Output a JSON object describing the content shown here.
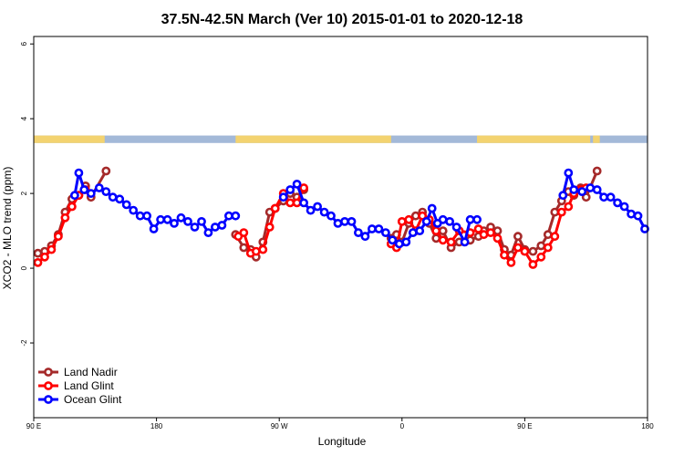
{
  "chart_data": {
    "type": "line",
    "title": "37.5N-42.5N March (Ver 10)   2015-01-01 to 2020-12-18",
    "xlabel": "Longitude",
    "ylabel": "XCO2 - MLO trend (ppm)",
    "xlim": [
      0,
      450
    ],
    "ylim": [
      -4.0,
      6.2
    ],
    "x_ticks": [
      {
        "value": 0,
        "label": "90 E"
      },
      {
        "value": 90,
        "label": "180"
      },
      {
        "value": 180,
        "label": "90 W"
      },
      {
        "value": 270,
        "label": "0"
      },
      {
        "value": 360,
        "label": "90 E"
      },
      {
        "value": 450,
        "label": "180"
      }
    ],
    "y_ticks": [
      {
        "value": -2,
        "label": "-2"
      },
      {
        "value": 0,
        "label": "0"
      },
      {
        "value": 2,
        "label": "2"
      },
      {
        "value": 4,
        "label": "4"
      },
      {
        "value": 6,
        "label": "6"
      }
    ],
    "land_strip": {
      "y_range": [
        3.35,
        3.55
      ],
      "ocean_color": "#a3b9d8",
      "land_color": "#f3d370",
      "land_segments": [
        [
          0,
          52
        ],
        [
          148,
          262
        ],
        [
          325,
          408
        ],
        [
          410,
          415
        ]
      ]
    },
    "legend": {
      "position": "bottom-left",
      "entries": [
        "Land Nadir",
        "Land Glint",
        "Ocean Glint"
      ]
    },
    "series": [
      {
        "name": "Land Nadir",
        "color": "#a52a2a",
        "segments": [
          [
            [
              3,
              0.4
            ],
            [
              8,
              0.45
            ],
            [
              13,
              0.6
            ],
            [
              18,
              0.9
            ],
            [
              23,
              1.5
            ],
            [
              28,
              1.85
            ],
            [
              33,
              1.95
            ],
            [
              38,
              2.2
            ],
            [
              42,
              1.9
            ],
            [
              53,
              2.6
            ]
          ],
          [
            [
              148,
              0.9
            ],
            [
              154,
              0.55
            ],
            [
              159,
              0.5
            ],
            [
              163,
              0.3
            ],
            [
              168,
              0.7
            ],
            [
              173,
              1.5
            ],
            [
              177,
              1.6
            ],
            [
              183,
              1.8
            ],
            [
              188,
              2.0
            ],
            [
              193,
              1.9
            ],
            [
              198,
              2.1
            ]
          ],
          [
            [
              262,
              0.8
            ],
            [
              266,
              0.9
            ],
            [
              270,
              0.7
            ],
            [
              275,
              1.2
            ],
            [
              280,
              1.4
            ],
            [
              285,
              1.5
            ],
            [
              290,
              1.2
            ],
            [
              295,
              0.8
            ],
            [
              300,
              1.0
            ],
            [
              306,
              0.55
            ],
            [
              312,
              0.7
            ],
            [
              320,
              0.75
            ],
            [
              326,
              0.85
            ],
            [
              330,
              1.0
            ],
            [
              335,
              1.1
            ],
            [
              340,
              1.0
            ],
            [
              345,
              0.5
            ],
            [
              350,
              0.35
            ],
            [
              355,
              0.85
            ],
            [
              360,
              0.5
            ],
            [
              366,
              0.45
            ],
            [
              372,
              0.6
            ],
            [
              377,
              0.9
            ],
            [
              382,
              1.5
            ],
            [
              387,
              1.8
            ],
            [
              392,
              2.05
            ],
            [
              396,
              1.95
            ],
            [
              401,
              2.15
            ],
            [
              405,
              1.9
            ],
            [
              413,
              2.6
            ]
          ]
        ]
      },
      {
        "name": "Land Glint",
        "color": "#ff0000",
        "segments": [
          [
            [
              3,
              0.15
            ],
            [
              8,
              0.3
            ],
            [
              13,
              0.5
            ],
            [
              18,
              0.85
            ],
            [
              23,
              1.35
            ],
            [
              28,
              1.65
            ],
            [
              33,
              1.95
            ],
            [
              38,
              2.1
            ]
          ],
          [
            [
              150,
              0.85
            ],
            [
              154,
              0.95
            ],
            [
              159,
              0.4
            ],
            [
              163,
              0.45
            ],
            [
              168,
              0.5
            ],
            [
              173,
              1.1
            ],
            [
              177,
              1.6
            ],
            [
              183,
              2.0
            ],
            [
              188,
              1.75
            ],
            [
              193,
              1.75
            ],
            [
              198,
              2.15
            ]
          ],
          [
            [
              262,
              0.65
            ],
            [
              266,
              0.55
            ],
            [
              270,
              1.25
            ],
            [
              275,
              1.3
            ],
            [
              280,
              1.0
            ],
            [
              285,
              1.4
            ],
            [
              290,
              1.3
            ],
            [
              295,
              1.0
            ],
            [
              300,
              0.75
            ],
            [
              306,
              0.7
            ],
            [
              312,
              1.0
            ],
            [
              320,
              0.95
            ],
            [
              326,
              1.05
            ],
            [
              330,
              0.9
            ],
            [
              335,
              0.95
            ],
            [
              340,
              0.8
            ],
            [
              345,
              0.35
            ],
            [
              350,
              0.15
            ],
            [
              355,
              0.55
            ],
            [
              360,
              0.45
            ],
            [
              366,
              0.1
            ],
            [
              372,
              0.3
            ],
            [
              377,
              0.55
            ],
            [
              382,
              0.85
            ],
            [
              387,
              1.5
            ],
            [
              392,
              1.65
            ],
            [
              396,
              2.0
            ],
            [
              401,
              2.1
            ],
            [
              405,
              2.15
            ]
          ]
        ]
      },
      {
        "name": "Ocean Glint",
        "color": "#0000ff",
        "segments": [
          [
            [
              30,
              1.95
            ],
            [
              33,
              2.55
            ],
            [
              37,
              2.1
            ],
            [
              42,
              2.0
            ],
            [
              48,
              2.15
            ],
            [
              53,
              2.05
            ],
            [
              58,
              1.9
            ],
            [
              63,
              1.85
            ],
            [
              68,
              1.7
            ],
            [
              73,
              1.55
            ],
            [
              78,
              1.4
            ],
            [
              83,
              1.4
            ],
            [
              88,
              1.05
            ],
            [
              93,
              1.3
            ],
            [
              98,
              1.3
            ],
            [
              103,
              1.2
            ],
            [
              108,
              1.35
            ],
            [
              113,
              1.25
            ],
            [
              118,
              1.1
            ],
            [
              123,
              1.25
            ],
            [
              128,
              0.95
            ],
            [
              133,
              1.1
            ],
            [
              138,
              1.15
            ],
            [
              143,
              1.4
            ],
            [
              148,
              1.4
            ]
          ],
          [
            [
              183,
              1.9
            ],
            [
              188,
              2.1
            ],
            [
              193,
              2.25
            ],
            [
              198,
              1.75
            ],
            [
              203,
              1.55
            ],
            [
              208,
              1.65
            ],
            [
              213,
              1.5
            ],
            [
              218,
              1.4
            ],
            [
              223,
              1.2
            ],
            [
              228,
              1.25
            ],
            [
              233,
              1.25
            ],
            [
              238,
              0.95
            ],
            [
              243,
              0.85
            ],
            [
              248,
              1.05
            ],
            [
              253,
              1.05
            ],
            [
              258,
              0.95
            ],
            [
              263,
              0.75
            ],
            [
              268,
              0.65
            ],
            [
              273,
              0.7
            ],
            [
              278,
              0.95
            ],
            [
              283,
              1.0
            ],
            [
              288,
              1.25
            ],
            [
              292,
              1.6
            ],
            [
              296,
              1.2
            ],
            [
              300,
              1.3
            ],
            [
              305,
              1.25
            ],
            [
              310,
              1.1
            ],
            [
              316,
              0.7
            ],
            [
              320,
              1.3
            ],
            [
              325,
              1.3
            ]
          ],
          [
            [
              388,
              1.95
            ],
            [
              392,
              2.55
            ],
            [
              396,
              2.1
            ],
            [
              402,
              2.05
            ],
            [
              408,
              2.15
            ],
            [
              413,
              2.1
            ],
            [
              418,
              1.9
            ],
            [
              423,
              1.9
            ],
            [
              428,
              1.75
            ],
            [
              433,
              1.65
            ],
            [
              438,
              1.45
            ],
            [
              443,
              1.4
            ],
            [
              448,
              1.05
            ]
          ]
        ]
      }
    ]
  }
}
